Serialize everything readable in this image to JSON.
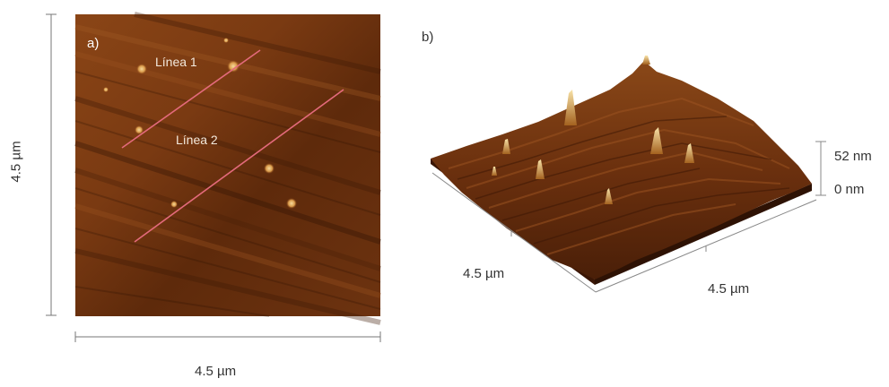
{
  "panel_a": {
    "label": "a)",
    "line1_label": "Línea 1",
    "line2_label": "Línea 2",
    "y_axis_label": "4.5 µm",
    "x_axis_label": "4.5 µm",
    "line_color": "#e36a7b",
    "image_base_color": "#7a3a12"
  },
  "panel_b": {
    "label": "b)",
    "left_axis_label": "4.5 µm",
    "right_axis_label": "4.5 µm",
    "z_max_label": "52 nm",
    "z_min_label": "0 nm",
    "surface_color": "#6b300e"
  }
}
